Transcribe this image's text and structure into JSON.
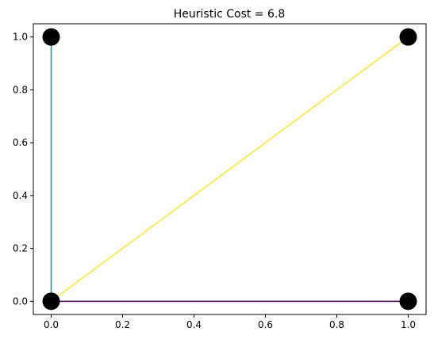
{
  "chart_data": {
    "type": "scatter",
    "title": "Heuristic Cost = 6.8",
    "xlabel": "",
    "ylabel": "",
    "xlim": [
      -0.05,
      1.05
    ],
    "ylim": [
      -0.05,
      1.05
    ],
    "x_ticks": [
      0.0,
      0.2,
      0.4,
      0.6,
      0.8,
      1.0
    ],
    "y_ticks": [
      0.0,
      0.2,
      0.4,
      0.6,
      0.8,
      1.0
    ],
    "x_tick_labels": [
      "0.0",
      "0.2",
      "0.4",
      "0.6",
      "0.8",
      "1.0"
    ],
    "y_tick_labels": [
      "0.0",
      "0.2",
      "0.4",
      "0.6",
      "0.8",
      "1.0"
    ],
    "grid": false,
    "nodes": [
      {
        "x": 0.0,
        "y": 1.0
      },
      {
        "x": 1.0,
        "y": 1.0
      },
      {
        "x": 0.0,
        "y": 0.0
      },
      {
        "x": 1.0,
        "y": 0.0
      }
    ],
    "edges": [
      {
        "x": [
          0.0,
          0.0
        ],
        "y": [
          0.0,
          1.0
        ],
        "color": "#21918c"
      },
      {
        "x": [
          0.0,
          1.0
        ],
        "y": [
          0.0,
          1.0
        ],
        "color": "#fde725"
      },
      {
        "x": [
          0.0,
          1.0
        ],
        "y": [
          0.0,
          0.0
        ],
        "color": "#440154"
      }
    ],
    "node_color": "#000000"
  }
}
